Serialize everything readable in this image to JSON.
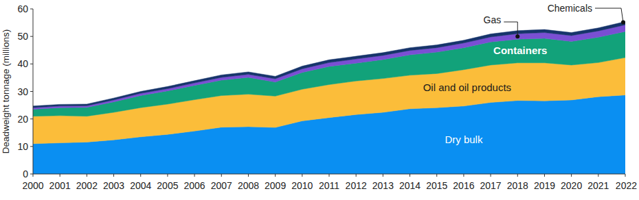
{
  "chart_data": {
    "type": "area",
    "stacked": true,
    "grid": false,
    "y_label": "Deadweight tonnage (millions)",
    "x": [
      2000,
      2001,
      2002,
      2003,
      2004,
      2005,
      2006,
      2007,
      2008,
      2009,
      2010,
      2011,
      2012,
      2013,
      2014,
      2015,
      2016,
      2017,
      2018,
      2019,
      2020,
      2021,
      2022
    ],
    "xlim": [
      2000,
      2022
    ],
    "xticks": [
      2000,
      2001,
      2002,
      2003,
      2004,
      2005,
      2006,
      2007,
      2008,
      2009,
      2010,
      2011,
      2012,
      2013,
      2014,
      2015,
      2016,
      2017,
      2018,
      2019,
      2020,
      2021,
      2022
    ],
    "ylim": [
      0,
      60
    ],
    "yticks": [
      0,
      10,
      20,
      30,
      40,
      50,
      60
    ],
    "series": [
      {
        "name": "Dry bulk",
        "color": "#0a8ff2",
        "values": [
          11,
          11.3,
          11.6,
          12.4,
          13.5,
          14.4,
          15.6,
          17,
          17.2,
          16.9,
          19.3,
          20.5,
          21.6,
          22.4,
          23.7,
          24.1,
          24.7,
          26,
          26.7,
          26.6,
          26.9,
          28.1,
          28.7
        ]
      },
      {
        "name": "Oil and oil products",
        "color": "#fbbd3a",
        "values": [
          10,
          9.9,
          9.4,
          10,
          10.6,
          11,
          11.4,
          11.5,
          11.8,
          11.4,
          11.5,
          12,
          12.2,
          12.3,
          12.2,
          12.4,
          13.2,
          13.6,
          13.7,
          13.8,
          12.7,
          12.4,
          13.6
        ]
      },
      {
        "name": "Containers",
        "color": "#12a27a",
        "values": [
          2.5,
          2.9,
          3.2,
          3.8,
          4.4,
          4.8,
          5.2,
          5.6,
          6.1,
          5.1,
          6.1,
          6.6,
          6.5,
          6.9,
          7.4,
          7.8,
          8,
          8.4,
          8.6,
          8.9,
          8.6,
          9.2,
          9.5
        ]
      },
      {
        "name": "Gas",
        "color": "#7a4fd3",
        "values": [
          0.6,
          0.6,
          0.6,
          0.7,
          0.8,
          0.8,
          0.9,
          1,
          1.1,
          1.2,
          1.3,
          1.4,
          1.5,
          1.5,
          1.6,
          1.6,
          1.7,
          1.8,
          2,
          2.1,
          2.1,
          2.3,
          2.4
        ]
      },
      {
        "name": "Chemicals",
        "color": "#16346b",
        "values": [
          0.6,
          0.6,
          0.6,
          0.7,
          0.7,
          0.8,
          0.8,
          0.9,
          0.9,
          0.9,
          1,
          1,
          1,
          1,
          1,
          1,
          1,
          1.1,
          1.1,
          1.1,
          1.1,
          1.1,
          1.2
        ]
      }
    ]
  }
}
